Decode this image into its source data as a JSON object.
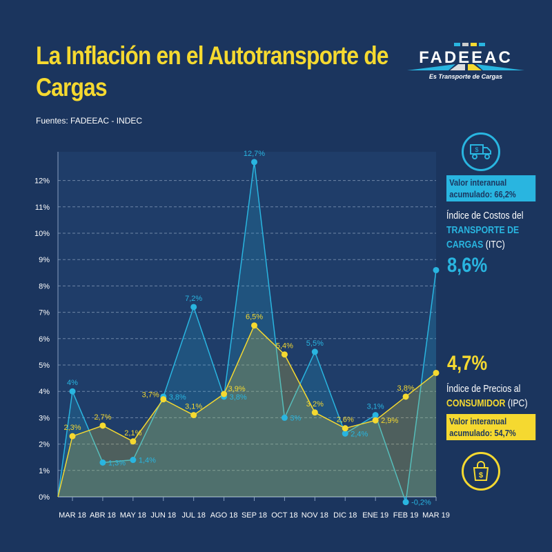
{
  "header": {
    "title": "La Inflación en el Autotransporte de Cargas",
    "sources": "Fuentes: FADEEAC - INDEC"
  },
  "logo": {
    "name": "FADEEAC",
    "tagline": "Es Transporte de Cargas"
  },
  "colors": {
    "background": "#1b355e",
    "itc": "#29b5e0",
    "ipc": "#f5d930"
  },
  "legend": {
    "itc": {
      "icon": "truck-dollar-icon",
      "badge": "Valor interanual acumulado: 66,2%",
      "text_pre": "Índice de Costos del",
      "text_highlight": "TRANSPORTE DE CARGAS",
      "text_post": "(ITC)",
      "latest": "8,6%"
    },
    "ipc": {
      "icon": "shopping-bag-dollar-icon",
      "badge": "Valor interanual acumulado: 54,7%",
      "text_pre": "Índice de Precios al",
      "text_highlight": "CONSUMIDOR",
      "text_post": "(IPC)",
      "latest": "4,7%"
    }
  },
  "chart_data": {
    "type": "line",
    "categories": [
      "MAR 18",
      "ABR 18",
      "MAY 18",
      "JUN 18",
      "JUL 18",
      "AGO 18",
      "SEP 18",
      "OCT 18",
      "NOV 18",
      "DIC 18",
      "ENE 19",
      "FEB 19",
      "MAR 19"
    ],
    "ylim": [
      0,
      12.5
    ],
    "yticks": [
      "0%",
      "1%",
      "2%",
      "3%",
      "4%",
      "5%",
      "6%",
      "7%",
      "8%",
      "9%",
      "10%",
      "11%",
      "12%"
    ],
    "grid": true,
    "series": [
      {
        "name": "ITC",
        "color": "#29b5e0",
        "values": [
          4,
          1.3,
          1.4,
          3.8,
          7.2,
          3.8,
          12.7,
          3,
          5.5,
          2.4,
          3.1,
          -0.2,
          8.6
        ],
        "labels": [
          "4%",
          "1,3%",
          "1,4%",
          "3,8%",
          "7,2%",
          "3,8%",
          "12,7%",
          "3%",
          "5,5%",
          "2,4%",
          "3,1%",
          "-0,2%",
          ""
        ]
      },
      {
        "name": "IPC",
        "color": "#f5d930",
        "values": [
          2.3,
          2.7,
          2.1,
          3.7,
          3.1,
          3.9,
          6.5,
          5.4,
          3.2,
          2.6,
          2.9,
          3.8,
          4.7
        ],
        "labels": [
          "2,3%",
          "2,7%",
          "2,1%",
          "3,7%",
          "3,1%",
          "3,9%",
          "6,5%",
          "5,4%",
          "3,2%",
          "2,6%",
          "2,9%",
          "3,8%",
          ""
        ]
      }
    ]
  }
}
